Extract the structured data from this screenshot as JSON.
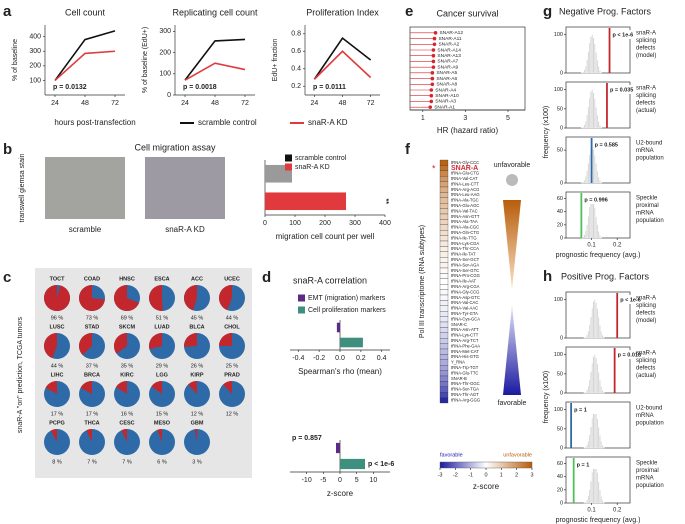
{
  "chart_data": [
    {
      "panel": "a",
      "type": "line",
      "title": "Cell count",
      "ylabel": "% of baseline",
      "xlabel": "hours post-transfection",
      "x": [
        24,
        48,
        72
      ],
      "xlim": [
        16,
        80
      ],
      "xticks": [
        24,
        48,
        72
      ],
      "ylim": [
        0,
        480
      ],
      "yticks": [
        100,
        200,
        300,
        400
      ],
      "series": [
        {
          "name": "scramble control",
          "color": "#111111",
          "values": [
            100,
            380,
            440
          ]
        },
        {
          "name": "snaR-A KD",
          "color": "#e03a3e",
          "values": [
            100,
            285,
            300
          ]
        }
      ],
      "annotation": "p = 0.0132"
    },
    {
      "type": "line",
      "title": "Replicating cell count",
      "ylabel": "% of baseline (EdU+)",
      "x": [
        24,
        48,
        72
      ],
      "xlim": [
        16,
        80
      ],
      "xticks": [
        24,
        48,
        72
      ],
      "ylim": [
        0,
        330
      ],
      "yticks": [
        0,
        100,
        200,
        300
      ],
      "series": [
        {
          "color": "#111111",
          "values": [
            70,
            255,
            262
          ]
        },
        {
          "color": "#e03a3e",
          "values": [
            70,
            150,
            120
          ]
        }
      ],
      "annotation": "p = 0.0018"
    },
    {
      "type": "line",
      "title": "Proliferation Index",
      "ylabel": "EdU+ fraction",
      "x": [
        24,
        48,
        72
      ],
      "xlim": [
        16,
        80
      ],
      "xticks": [
        24,
        48,
        72
      ],
      "ylim": [
        0.1,
        0.9
      ],
      "yticks": [
        0.2,
        0.4,
        0.6,
        0.8
      ],
      "series": [
        {
          "color": "#111111",
          "values": [
            0.28,
            0.75,
            0.5
          ]
        },
        {
          "color": "#e03a3e",
          "values": [
            0.28,
            0.6,
            0.3
          ]
        }
      ],
      "annotation": "p = 0.0111"
    },
    {
      "panel": "b",
      "type": "bar",
      "orientation": "horizontal",
      "title": "Cell migration assay",
      "ylabel": "transwell giemsa stain",
      "image_labels": [
        "scramble",
        "snaR-A KD"
      ],
      "categories": [
        "scramble control",
        "snaR-A KD"
      ],
      "values": [
        90,
        270
      ],
      "colors": [
        "#9a9a9a",
        "#e03a3e"
      ],
      "xlim": [
        0,
        400
      ],
      "xticks": [
        0,
        100,
        200,
        300,
        400
      ],
      "xlabel": "migration cell count per well",
      "annotation": "**"
    },
    {
      "panel": "c",
      "type": "pie",
      "ylabel": "snaR-A \"on\" prediction, TCGA tumors",
      "colors": [
        "#c1272d",
        "#2e6aa7"
      ],
      "categories": [
        "TOCT",
        "COAD",
        "HNSC",
        "ESCA",
        "ACC",
        "UCEC",
        "LUSC",
        "STAD",
        "SKCM",
        "LUAD",
        "BLCA",
        "CHOL",
        "LIHC",
        "BRCA",
        "KIRC",
        "LGG",
        "KIRP",
        "PRAD",
        "PCPG",
        "THCA",
        "CESC",
        "MESO",
        "GBM"
      ],
      "values": [
        96,
        73,
        69,
        51,
        45,
        44,
        44,
        37,
        35,
        29,
        26,
        25,
        17,
        17,
        16,
        15,
        12,
        12,
        8,
        7,
        7,
        6,
        3
      ],
      "value_labels": [
        "96 %",
        "73 %",
        "69 %",
        "51 %",
        "45 %",
        "44 %",
        "44 %",
        "37 %",
        "35 %",
        "29 %",
        "26 %",
        "25 %",
        "17 %",
        "17 %",
        "16 %",
        "15 %",
        "12 %",
        "12 %",
        "8 %",
        "7 %",
        "7 %",
        "6 %",
        "3 %"
      ]
    },
    {
      "panel": "d",
      "type": "bar",
      "orientation": "horizontal",
      "title": "snaR-A correlation",
      "categories": [
        "EMT (migration) markers",
        "Cell proliferation markers"
      ],
      "colors": [
        "#5b2c83",
        "#3f8f7f"
      ],
      "values": [
        -0.03,
        0.22
      ],
      "xlim": [
        -0.48,
        0.48
      ],
      "xticks": [
        -0.4,
        -0.2,
        {
          "value": 0,
          "label": "0.0"
        },
        0.2,
        0.4
      ],
      "xlabel": "Spearman's rho (mean)"
    },
    {
      "type": "bar",
      "orientation": "horizontal",
      "colors": [
        "#5b2c83",
        "#3f8f7f"
      ],
      "values": [
        -1.2,
        7.5
      ],
      "annotations": [
        "p = 0.857",
        "p < 1e-6"
      ],
      "xlim": [
        -15,
        15
      ],
      "xticks": [
        -10,
        -5,
        0,
        5,
        10
      ],
      "xlabel": "z-score"
    },
    {
      "panel": "e",
      "type": "dot",
      "title": "Cancer survival",
      "color": "#d7262b",
      "categories": [
        "SNAR-A12",
        "SNAR-A11",
        "SNAR-A2",
        "SNAR-A14",
        "SNAR-A13",
        "SNAR-A7",
        "SNAR-A9",
        "SNAR-A5",
        "SNAR-A6",
        "SNAR-A8",
        "SNAR-A4",
        "SNAR-A10",
        "SNAR-A3",
        "SNAR-A1"
      ],
      "values": [
        1.6,
        1.55,
        1.55,
        1.5,
        1.5,
        1.5,
        1.5,
        1.45,
        1.45,
        1.45,
        1.4,
        1.4,
        1.4,
        1.35
      ],
      "xlim": [
        0.4,
        5.8
      ],
      "xticks": [
        1,
        3,
        5
      ],
      "xlabel": "HR (hazard ratio)"
    },
    {
      "panel": "f",
      "type": "heatmap",
      "ylabel": "Pol III transcriptome (RNA subtypes)",
      "top_label": "unfavorable",
      "bottom_label": "favorable",
      "highlight": 1,
      "highlight_marker": "*",
      "highlight_color": "#d7262b",
      "labels": [
        "tRNA-Gly-CCC",
        "SNAR-A",
        "tRNA-Glu-CTG",
        "tRNA-Val-CAT",
        "tRNA-Leu-CTT",
        "tRNA-Arg-ACG",
        "tRNA-Leu-AAG",
        "tRNA-Ala-TGC",
        "tRNA-Glu-AGC",
        "tRNA-Val-TAC",
        "tRNA-Asn-GTT",
        "tRNA-Ala-TAA",
        "tRNA-Ala-CGC",
        "tRNA-Gln-CTG",
        "tRNA-Ile-TTG",
        "tRNA-Lys-CGA",
        "tRNA-Thr-CCA",
        "tRNA-Ile-TAT",
        "tRNA-Ser-GCT",
        "tRNA-Ser-AGA",
        "tRNA-Ser-GTC",
        "tRNA-Pro-CGG",
        "tRNA-Ile-AAT",
        "tRNA-Arg-CGA",
        "tRNA-Gly-CCG",
        "tRNA-Asp-GTC",
        "tRNA-Val-CAC",
        "tRNA-Val-AAC",
        "tRNA-Tyr-GTA",
        "tRNA-Cys-GCA",
        "SNAR-C",
        "tRNA-Asn-ATT",
        "tRNA-Lys-CTT",
        "tRNA-Arg-TCT",
        "tRNA-Phe-GAA",
        "tRNA-Met-CAT",
        "tRNA-His-GTG",
        "Y_RNA",
        "tRNA-Trp-TGT",
        "tRNA-Glu-TTC",
        "SNAR-B",
        "tRNA-Thr-GGC",
        "tRNA-Ser-TGA",
        "tRNA-Thr-AGT",
        "tRNA-Arg-GGG"
      ],
      "values": [
        2.9,
        2.6,
        2.2,
        1.9,
        1.7,
        1.5,
        1.3,
        1.2,
        1.1,
        1.0,
        0.9,
        0.8,
        0.7,
        0.6,
        0.5,
        0.4,
        0.3,
        0.3,
        0.2,
        0.2,
        0.1,
        0.1,
        0.0,
        0.0,
        -0.1,
        -0.1,
        -0.2,
        -0.2,
        -0.3,
        -0.3,
        -0.4,
        -0.5,
        -0.6,
        -0.7,
        -0.8,
        -0.9,
        -1.0,
        -1.1,
        -1.2,
        -1.4,
        -1.6,
        -1.8,
        -2.1,
        -2.4,
        -2.8
      ],
      "zlim": [
        -3,
        3
      ],
      "zticks": [
        -3,
        -2,
        -1,
        0,
        1,
        2,
        3
      ],
      "zlabel": "z-score",
      "zlow_label": "favorable",
      "zhigh_label": "unfavorable"
    },
    {
      "panel": "g",
      "type": "histogram",
      "title": "Negative Prog. Factors",
      "ylabel": "frequency (x100)",
      "xlabel": "prognostic frequency (avg.)",
      "xlim": [
        0,
        0.25
      ],
      "xticks": [
        0.1,
        0.2
      ],
      "bar_color": "#d4d4d4",
      "bins": [
        0.06,
        0.065,
        0.07,
        0.075,
        0.08,
        0.085,
        0.09,
        0.095,
        0.1,
        0.105,
        0.11,
        0.115,
        0.12,
        0.125,
        0.13,
        0.135,
        0.14
      ],
      "subplots": [
        {
          "label": [
            "snaR-A",
            "splicing",
            "defects",
            "(model)"
          ],
          "counts": [
            1,
            3,
            8,
            18,
            34,
            55,
            78,
            95,
            100,
            92,
            76,
            54,
            33,
            17,
            7,
            2
          ],
          "ylim": [
            0,
            120
          ],
          "yticks": [
            0,
            100
          ],
          "line": 0.17,
          "line_color": "#c1272d",
          "annotation": "p < 1e-6"
        },
        {
          "label": [
            "snaR-A",
            "splicing",
            "defects",
            "(actual)"
          ],
          "counts": [
            1,
            3,
            8,
            18,
            34,
            55,
            78,
            95,
            100,
            92,
            76,
            54,
            33,
            17,
            7,
            2
          ],
          "ylim": [
            0,
            120
          ],
          "yticks": [
            0,
            50,
            100
          ],
          "line": 0.16,
          "line_color": "#c1272d",
          "annotation": "p = 0.035"
        },
        {
          "label": [
            "U2-bound",
            "mRNA",
            "population"
          ],
          "counts": [
            1,
            2,
            4,
            10,
            19,
            30,
            43,
            52,
            55,
            51,
            42,
            30,
            18,
            9,
            4,
            1
          ],
          "ylim": [
            0,
            70
          ],
          "yticks": [
            0,
            50
          ],
          "line": 0.1,
          "line_color": "#2e6aa7",
          "annotation": "p = 0.585"
        },
        {
          "label": [
            "Speckle",
            "proximal",
            "mRNA",
            "population"
          ],
          "counts": [
            1,
            2,
            5,
            11,
            20,
            33,
            47,
            57,
            60,
            55,
            46,
            32,
            20,
            10,
            4,
            1
          ],
          "ylim": [
            0,
            70
          ],
          "yticks": [
            0,
            20,
            40,
            60
          ],
          "line": 0.06,
          "line_color": "#4cc25a",
          "annotation": "p = 0.996"
        }
      ]
    },
    {
      "panel": "h",
      "type": "histogram",
      "title": "Positive Prog. Factors",
      "ylabel": "frequency (x100)",
      "xlabel": "prognostic frequency (avg.)",
      "xlim": [
        0,
        0.25
      ],
      "xticks": [
        0.1,
        0.2
      ],
      "bar_color": "#d4d4d4",
      "bins": [
        0.07,
        0.075,
        0.08,
        0.085,
        0.09,
        0.095,
        0.1,
        0.105,
        0.11,
        0.115,
        0.12,
        0.125,
        0.13,
        0.135,
        0.14,
        0.145,
        0.15
      ],
      "subplots": [
        {
          "label": [
            "snaR-A",
            "splicing",
            "defects",
            "(model)"
          ],
          "counts": [
            1,
            3,
            8,
            18,
            34,
            55,
            78,
            95,
            100,
            92,
            76,
            54,
            33,
            17,
            7,
            2
          ],
          "ylim": [
            0,
            120
          ],
          "yticks": [
            0,
            100
          ],
          "line": 0.2,
          "line_color": "#c1272d",
          "annotation": "p < 1e-6"
        },
        {
          "label": [
            "snaR-A",
            "splicing",
            "defects",
            "(actual)"
          ],
          "counts": [
            1,
            3,
            8,
            18,
            34,
            55,
            78,
            95,
            100,
            92,
            76,
            54,
            33,
            17,
            7,
            2
          ],
          "ylim": [
            0,
            120
          ],
          "yticks": [
            0,
            50,
            100
          ],
          "line": 0.19,
          "line_color": "#c1272d",
          "annotation": "p = 0.018"
        },
        {
          "label": [
            "U2-bound",
            "mRNA",
            "population"
          ],
          "counts": [
            1,
            3,
            8,
            18,
            34,
            55,
            78,
            95,
            100,
            92,
            76,
            54,
            33,
            17,
            7,
            2
          ],
          "ylim": [
            0,
            120
          ],
          "yticks": [
            0,
            50,
            100
          ],
          "line": 0.02,
          "line_color": "#2e6aa7",
          "annotation": "p = 1"
        },
        {
          "label": [
            "Speckle",
            "proximal",
            "mRNA",
            "population"
          ],
          "counts": [
            1,
            2,
            5,
            11,
            20,
            33,
            47,
            57,
            60,
            55,
            46,
            32,
            20,
            10,
            4,
            1
          ],
          "ylim": [
            0,
            70
          ],
          "yticks": [
            0,
            20,
            40,
            60
          ],
          "line": 0.03,
          "line_color": "#4cc25a",
          "annotation": "p = 1"
        }
      ]
    }
  ]
}
